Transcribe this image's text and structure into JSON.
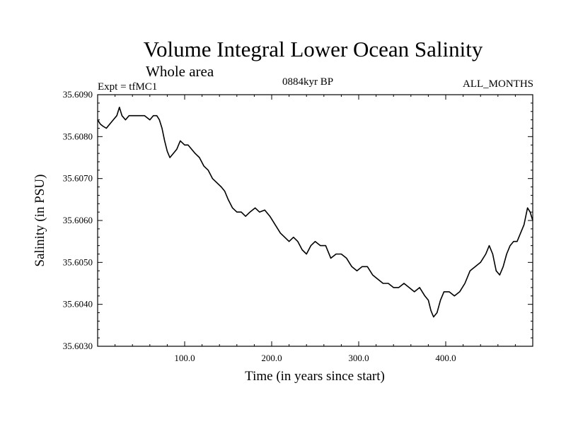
{
  "header": {
    "title": "Volume Integral Lower Ocean Salinity",
    "subtitle": "Whole area",
    "experiment": "Expt = tfMC1",
    "period": "0884kyr BP",
    "months": "ALL_MONTHS"
  },
  "chart_data": {
    "type": "line",
    "title": "Volume Integral Lower Ocean Salinity",
    "xlabel": "Time (in years since start)",
    "ylabel": "Salinity (in PSU)",
    "xlim": [
      0,
      500
    ],
    "ylim": [
      35.603,
      35.609
    ],
    "xticks": [
      100,
      200,
      300,
      400
    ],
    "xtick_labels": [
      "100.0",
      "200.0",
      "300.0",
      "400.0"
    ],
    "yticks": [
      35.603,
      35.604,
      35.605,
      35.606,
      35.607,
      35.608,
      35.609
    ],
    "ytick_labels": [
      "35.6030",
      "35.6040",
      "35.6050",
      "35.6060",
      "35.6070",
      "35.6080",
      "35.6090"
    ],
    "grid": false,
    "series": [
      {
        "name": "salinity",
        "points": [
          [
            0,
            35.6084
          ],
          [
            3,
            35.6083
          ],
          [
            6,
            35.60825
          ],
          [
            10,
            35.6082
          ],
          [
            14,
            35.6083
          ],
          [
            18,
            35.6084
          ],
          [
            22,
            35.6085
          ],
          [
            25,
            35.6087
          ],
          [
            28,
            35.6085
          ],
          [
            32,
            35.6084
          ],
          [
            36,
            35.6085
          ],
          [
            42,
            35.6085
          ],
          [
            48,
            35.6085
          ],
          [
            54,
            35.6085
          ],
          [
            60,
            35.6084
          ],
          [
            64,
            35.6085
          ],
          [
            68,
            35.6085
          ],
          [
            71,
            35.6084
          ],
          [
            74,
            35.6082
          ],
          [
            77,
            35.6079
          ],
          [
            80,
            35.60765
          ],
          [
            83,
            35.6075
          ],
          [
            87,
            35.6076
          ],
          [
            91,
            35.6077
          ],
          [
            95,
            35.6079
          ],
          [
            100,
            35.6078
          ],
          [
            104,
            35.6078
          ],
          [
            108,
            35.6077
          ],
          [
            112,
            35.6076
          ],
          [
            117,
            35.6075
          ],
          [
            122,
            35.6073
          ],
          [
            127,
            35.6072
          ],
          [
            132,
            35.607
          ],
          [
            137,
            35.6069
          ],
          [
            142,
            35.6068
          ],
          [
            146,
            35.6067
          ],
          [
            150,
            35.6065
          ],
          [
            155,
            35.6063
          ],
          [
            160,
            35.6062
          ],
          [
            165,
            35.6062
          ],
          [
            170,
            35.6061
          ],
          [
            175,
            35.6062
          ],
          [
            181,
            35.6063
          ],
          [
            186,
            35.6062
          ],
          [
            192,
            35.60625
          ],
          [
            198,
            35.6061
          ],
          [
            204,
            35.6059
          ],
          [
            210,
            35.6057
          ],
          [
            215,
            35.6056
          ],
          [
            220,
            35.6055
          ],
          [
            225,
            35.6056
          ],
          [
            230,
            35.6055
          ],
          [
            235,
            35.6053
          ],
          [
            240,
            35.6052
          ],
          [
            245,
            35.6054
          ],
          [
            250,
            35.6055
          ],
          [
            256,
            35.6054
          ],
          [
            262,
            35.6054
          ],
          [
            268,
            35.6051
          ],
          [
            274,
            35.6052
          ],
          [
            280,
            35.6052
          ],
          [
            286,
            35.6051
          ],
          [
            292,
            35.6049
          ],
          [
            298,
            35.6048
          ],
          [
            304,
            35.6049
          ],
          [
            310,
            35.6049
          ],
          [
            316,
            35.6047
          ],
          [
            322,
            35.6046
          ],
          [
            328,
            35.6045
          ],
          [
            334,
            35.6045
          ],
          [
            340,
            35.6044
          ],
          [
            346,
            35.6044
          ],
          [
            352,
            35.6045
          ],
          [
            358,
            35.6044
          ],
          [
            364,
            35.6043
          ],
          [
            370,
            35.6044
          ],
          [
            376,
            35.6042
          ],
          [
            380,
            35.6041
          ],
          [
            383,
            35.60385
          ],
          [
            386,
            35.6037
          ],
          [
            390,
            35.6038
          ],
          [
            394,
            35.6041
          ],
          [
            398,
            35.6043
          ],
          [
            404,
            35.6043
          ],
          [
            410,
            35.6042
          ],
          [
            416,
            35.6043
          ],
          [
            422,
            35.6045
          ],
          [
            428,
            35.6048
          ],
          [
            434,
            35.6049
          ],
          [
            440,
            35.605
          ],
          [
            446,
            35.6052
          ],
          [
            450,
            35.6054
          ],
          [
            454,
            35.6052
          ],
          [
            458,
            35.6048
          ],
          [
            462,
            35.6047
          ],
          [
            466,
            35.6049
          ],
          [
            470,
            35.6052
          ],
          [
            474,
            35.6054
          ],
          [
            478,
            35.6055
          ],
          [
            482,
            35.6055
          ],
          [
            486,
            35.6057
          ],
          [
            490,
            35.6059
          ],
          [
            494,
            35.6063
          ],
          [
            497,
            35.6062
          ],
          [
            500,
            35.606
          ]
        ]
      }
    ]
  }
}
